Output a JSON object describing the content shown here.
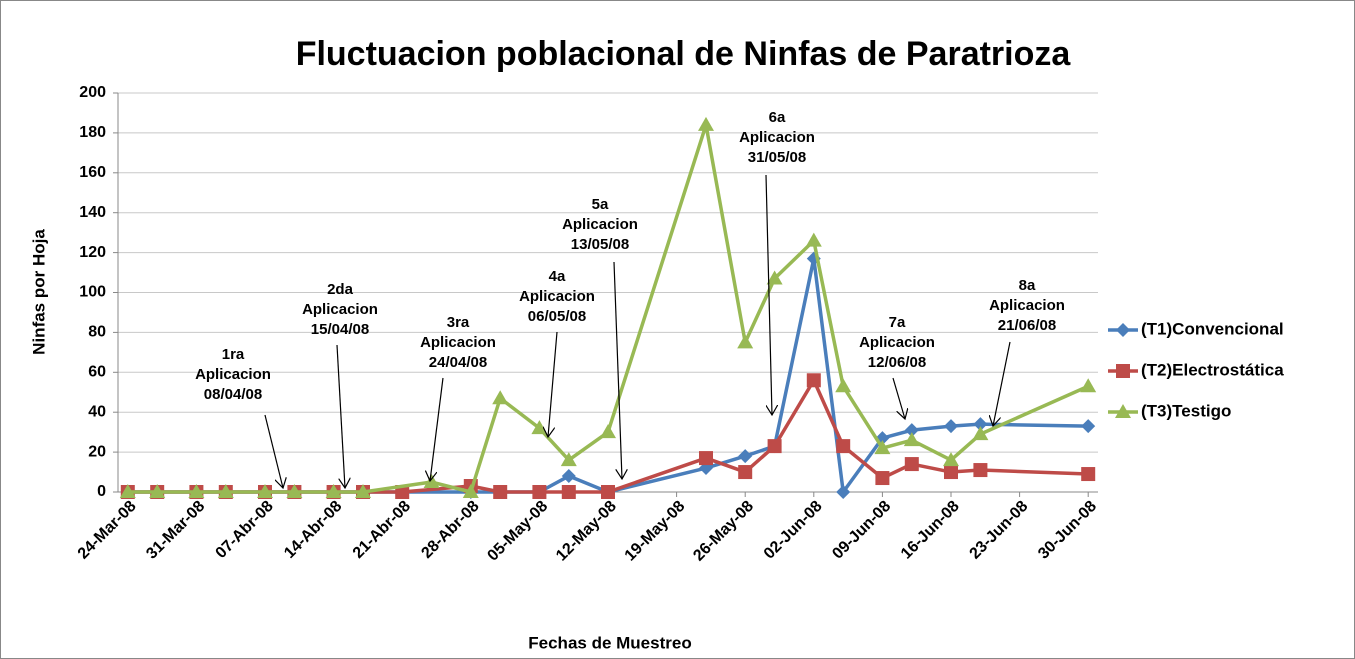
{
  "chart_data": {
    "type": "line",
    "title": "Fluctuacion poblacional de Ninfas de Paratrioza",
    "x_label": "Fechas de Muestreo",
    "y_label": "Ninfas por Hoja",
    "xlim": [
      "2008-03-23",
      "2008-07-01"
    ],
    "xticks": [
      {
        "value": "2008-03-24",
        "label": "24-Mar-08"
      },
      {
        "value": "2008-03-31",
        "label": "31-Mar-08"
      },
      {
        "value": "2008-04-07",
        "label": "07-Abr-08"
      },
      {
        "value": "2008-04-14",
        "label": "14-Abr-08"
      },
      {
        "value": "2008-04-21",
        "label": "21-Abr-08"
      },
      {
        "value": "2008-04-28",
        "label": "28-Abr-08"
      },
      {
        "value": "2008-05-05",
        "label": "05-May-08"
      },
      {
        "value": "2008-05-12",
        "label": "12-May-08"
      },
      {
        "value": "2008-05-19",
        "label": "19-May-08"
      },
      {
        "value": "2008-05-26",
        "label": "26-May-08"
      },
      {
        "value": "2008-06-02",
        "label": "02-Jun-08"
      },
      {
        "value": "2008-06-09",
        "label": "09-Jun-08"
      },
      {
        "value": "2008-06-16",
        "label": "16-Jun-08"
      },
      {
        "value": "2008-06-23",
        "label": "23-Jun-08"
      },
      {
        "value": "2008-06-30",
        "label": "30-Jun-08"
      }
    ],
    "ylim": [
      0,
      200
    ],
    "yticks": [
      0,
      20,
      40,
      60,
      80,
      100,
      120,
      140,
      160,
      180,
      200
    ],
    "grid": true,
    "legend": "right",
    "series": [
      {
        "name": "(T1)Convencional",
        "color": "#4a7ebb",
        "marker": "diamond",
        "x": [
          "2008-03-24",
          "2008-03-27",
          "2008-03-31",
          "2008-04-03",
          "2008-04-07",
          "2008-04-10",
          "2008-04-14",
          "2008-04-17",
          "2008-04-21",
          "2008-04-28",
          "2008-05-01",
          "2008-05-05",
          "2008-05-08",
          "2008-05-12",
          "2008-05-22",
          "2008-05-26",
          "2008-05-29",
          "2008-06-02",
          "2008-06-05",
          "2008-06-09",
          "2008-06-12",
          "2008-06-16",
          "2008-06-19",
          "2008-06-30"
        ],
        "values": [
          0,
          0,
          0,
          0,
          0,
          0,
          0,
          0,
          0,
          0,
          0,
          0,
          8,
          0,
          12,
          18,
          23,
          117,
          0,
          27,
          31,
          33,
          34,
          33
        ]
      },
      {
        "name": "(T2)Electrostática",
        "color": "#be4b48",
        "marker": "square",
        "x": [
          "2008-03-24",
          "2008-03-27",
          "2008-03-31",
          "2008-04-03",
          "2008-04-07",
          "2008-04-10",
          "2008-04-14",
          "2008-04-17",
          "2008-04-21",
          "2008-04-28",
          "2008-05-01",
          "2008-05-05",
          "2008-05-08",
          "2008-05-12",
          "2008-05-22",
          "2008-05-26",
          "2008-05-29",
          "2008-06-02",
          "2008-06-05",
          "2008-06-09",
          "2008-06-12",
          "2008-06-16",
          "2008-06-19",
          "2008-06-30"
        ],
        "values": [
          0,
          0,
          0,
          0,
          0,
          0,
          0,
          0,
          0,
          3,
          0,
          0,
          0,
          0,
          17,
          10,
          23,
          56,
          23,
          7,
          14,
          10,
          11,
          9
        ]
      },
      {
        "name": "(T3)Testigo",
        "color": "#98b954",
        "marker": "triangle",
        "x": [
          "2008-03-24",
          "2008-03-27",
          "2008-03-31",
          "2008-04-03",
          "2008-04-07",
          "2008-04-10",
          "2008-04-14",
          "2008-04-17",
          "2008-04-24",
          "2008-04-28",
          "2008-05-01",
          "2008-05-05",
          "2008-05-08",
          "2008-05-12",
          "2008-05-22",
          "2008-05-26",
          "2008-05-29",
          "2008-06-02",
          "2008-06-05",
          "2008-06-09",
          "2008-06-12",
          "2008-06-16",
          "2008-06-19",
          "2008-06-30"
        ],
        "values": [
          0,
          0,
          0,
          0,
          0,
          0,
          0,
          0,
          5,
          0,
          47,
          32,
          16,
          30,
          184,
          75,
          107,
          126,
          53,
          22,
          26,
          16,
          29,
          53
        ]
      }
    ],
    "annotations": [
      {
        "lines": [
          "1ra",
          "Aplicacion",
          "08/04/08"
        ]
      },
      {
        "lines": [
          "2da",
          "Aplicacion",
          "15/04/08"
        ]
      },
      {
        "lines": [
          "3ra",
          "Aplicacion",
          "24/04/08"
        ]
      },
      {
        "lines": [
          "4a",
          "Aplicacion",
          "06/05/08"
        ]
      },
      {
        "lines": [
          "5a",
          "Aplicacion",
          "13/05/08"
        ]
      },
      {
        "lines": [
          "6a",
          "Aplicacion",
          "31/05/08"
        ]
      },
      {
        "lines": [
          "7a",
          "Aplicacion",
          "12/06/08"
        ]
      },
      {
        "lines": [
          "8a",
          "Aplicacion",
          "21/06/08"
        ]
      }
    ]
  }
}
